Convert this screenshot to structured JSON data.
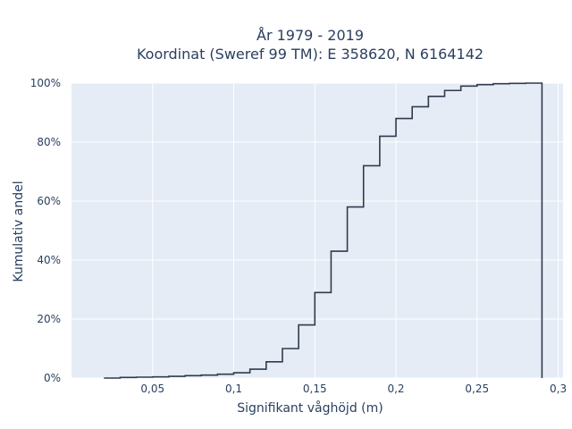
{
  "chart_data": {
    "type": "line",
    "line_shape": "step",
    "title_line1": "År 1979 - 2019",
    "title_line2": "Koordinat (Sweref 99 TM): E 358620, N 6164142",
    "xlabel": "Signifikant våghöjd (m)",
    "ylabel": "Kumulativ andel",
    "xlim": [
      0.0,
      0.303
    ],
    "ylim": [
      0,
      1.0
    ],
    "x_ticks": [
      0.05,
      0.1,
      0.15,
      0.2,
      0.25,
      0.3
    ],
    "x_tick_labels": [
      "0,05",
      "0,1",
      "0,15",
      "0,2",
      "0,25",
      "0,3"
    ],
    "y_ticks": [
      0,
      0.2,
      0.4,
      0.6,
      0.8,
      1.0
    ],
    "y_tick_labels": [
      "0%",
      "20%",
      "40%",
      "60%",
      "80%",
      "100%"
    ],
    "grid": true,
    "colors": {
      "plot_bg": "#e5ecf6",
      "grid": "#ffffff",
      "line": "#2f3b4c",
      "text": "#2a3f5f"
    },
    "series": [
      {
        "x": [
          0.02,
          0.03,
          0.04,
          0.05,
          0.06,
          0.07,
          0.08,
          0.09,
          0.1,
          0.11,
          0.12,
          0.13,
          0.14,
          0.15,
          0.16,
          0.17,
          0.18,
          0.19,
          0.2,
          0.21,
          0.22,
          0.23,
          0.24,
          0.25,
          0.26,
          0.27,
          0.28,
          0.29
        ],
        "y": [
          0.0,
          0.002,
          0.003,
          0.004,
          0.006,
          0.008,
          0.01,
          0.013,
          0.018,
          0.03,
          0.055,
          0.1,
          0.18,
          0.29,
          0.43,
          0.58,
          0.72,
          0.82,
          0.88,
          0.92,
          0.955,
          0.975,
          0.99,
          0.995,
          0.998,
          0.999,
          1.0,
          1.0
        ]
      }
    ]
  }
}
